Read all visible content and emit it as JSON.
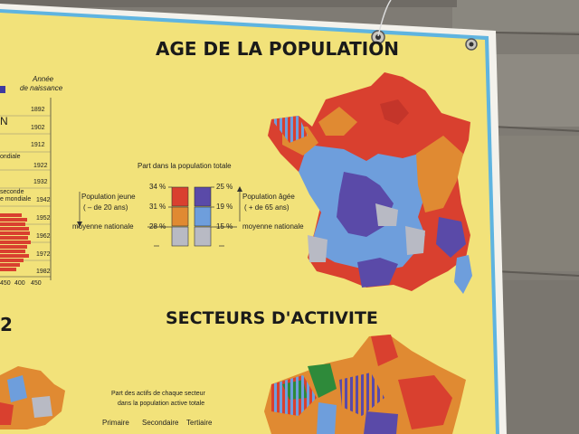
{
  "poster": {
    "title_top": "AGE DE LA POPULATION",
    "title_bottom": "SECTEURS D'ACTIVITE",
    "section_number": "2",
    "left_panel": {
      "annee_label_1": "Année",
      "annee_label_2": "de naissance",
      "years": [
        "1892",
        "1902",
        "1912",
        "1922",
        "1932",
        "1942",
        "1952",
        "1962",
        "1972",
        "1982"
      ],
      "letter": "N",
      "guerre_1": "ondiale",
      "guerre_2a": "seconde",
      "guerre_2b": "e mondiale",
      "x_ticks": [
        "450",
        "400",
        "450"
      ]
    },
    "legend_age": {
      "heading": "Part dans la population totale",
      "jeune_1": "Population jeune",
      "jeune_2": "( – de 20 ans)",
      "agee_1": "Population âgée",
      "agee_2": "( + de 65 ans)",
      "moyenne_left": "moyenne nationale",
      "moyenne_right": "moyenne nationale",
      "left_vals": [
        "34 %",
        "31 %",
        "28 %"
      ],
      "right_vals": [
        "25 %",
        "19 %",
        "15 %"
      ]
    },
    "legend_activite": {
      "line1": "Part des actifs de chaque secteur",
      "line2": "dans la population active totale",
      "sectors": [
        "Primaire",
        "Secondaire",
        "Tertiaire"
      ]
    },
    "colors": {
      "poster": "#f2e27a",
      "border": "#5fb4e0",
      "red": "#d9402f",
      "orange": "#e08a32",
      "purple": "#5a4aa8",
      "blue": "#6e9edc",
      "grey": "#b8bac4",
      "wall": "#7d7a74"
    }
  }
}
